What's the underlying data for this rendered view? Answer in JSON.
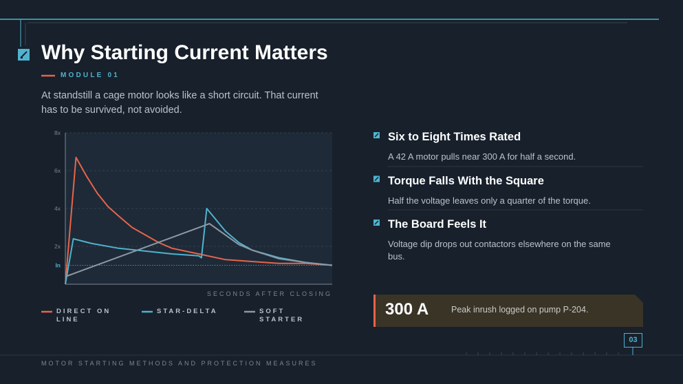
{
  "header": {
    "title": "Why Starting Current Matters",
    "module": "MODULE 01",
    "intro": "At standstill a cage motor looks like a short circuit. That current has to be survived, not avoided."
  },
  "chart_data": {
    "type": "line",
    "x_label": "SECONDS AFTER CLOSING",
    "xlim": [
      0,
      10
    ],
    "ylim": [
      0,
      8
    ],
    "yticks": [
      {
        "value": 8,
        "label": "8x"
      },
      {
        "value": 6,
        "label": "6x"
      },
      {
        "value": 4,
        "label": "4x"
      },
      {
        "value": 2,
        "label": "2x"
      },
      {
        "value": 1,
        "label": "In"
      }
    ],
    "grid": true,
    "series": [
      {
        "name": "DIRECT ON LINE",
        "color": "#e8644a",
        "x": [
          0,
          0.4,
          0.8,
          1.2,
          1.6,
          2,
          2.5,
          3,
          3.5,
          4,
          5,
          6,
          7,
          8,
          9,
          10
        ],
        "values": [
          0,
          6.7,
          5.7,
          4.8,
          4.1,
          3.6,
          3.0,
          2.6,
          2.2,
          1.9,
          1.6,
          1.3,
          1.2,
          1.1,
          1.1,
          1.0
        ]
      },
      {
        "name": "STAR-DELTA",
        "color": "#4fb3cf",
        "x": [
          0,
          0.3,
          1,
          2,
          3,
          4,
          5,
          5.1,
          5.3,
          6,
          6.5,
          7,
          8,
          9,
          10
        ],
        "values": [
          0,
          2.4,
          2.15,
          1.9,
          1.75,
          1.6,
          1.5,
          1.4,
          4.0,
          2.8,
          2.2,
          1.8,
          1.4,
          1.15,
          1.0
        ]
      },
      {
        "name": "SOFT STARTER",
        "color": "#8d98a4",
        "x": [
          0,
          5.4,
          6,
          6.5,
          7,
          8,
          9,
          10
        ],
        "values": [
          0.4,
          3.2,
          2.6,
          2.1,
          1.8,
          1.35,
          1.15,
          1.0
        ]
      }
    ]
  },
  "points": [
    {
      "title": "Six to Eight Times Rated",
      "text": "A 42 A motor pulls near 300 A for half a second."
    },
    {
      "title": "Torque Falls With the Square",
      "text": "Half the voltage leaves only a quarter of the torque."
    },
    {
      "title": "The Board Feels It",
      "text": "Voltage dip drops out contactors elsewhere on the same bus."
    }
  ],
  "callout": {
    "value": "300 A",
    "text": "Peak inrush logged on pump P-204."
  },
  "page_number": "03",
  "footer": "MOTOR STARTING METHODS AND PROTECTION MEASURES"
}
